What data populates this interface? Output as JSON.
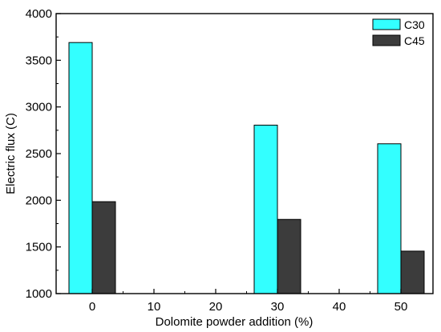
{
  "chart_data": {
    "type": "bar",
    "xlabel": "Dolomite powder addition (%)",
    "ylabel": "Electric flux (C)",
    "categories": [
      "0",
      "10",
      "20",
      "30",
      "40",
      "50"
    ],
    "ylim": [
      1000,
      4000
    ],
    "yticks": [
      "1000",
      "1500",
      "2000",
      "2500",
      "3000",
      "3500",
      "4000"
    ],
    "series": [
      {
        "name": "C30",
        "color": "#33ffff",
        "values": [
          3690,
          null,
          null,
          2805,
          null,
          2605
        ]
      },
      {
        "name": "C45",
        "color": "#3c3c3c",
        "values": [
          1985,
          null,
          null,
          1795,
          null,
          1455
        ]
      }
    ],
    "grid": false,
    "legend_position": "top-right"
  }
}
